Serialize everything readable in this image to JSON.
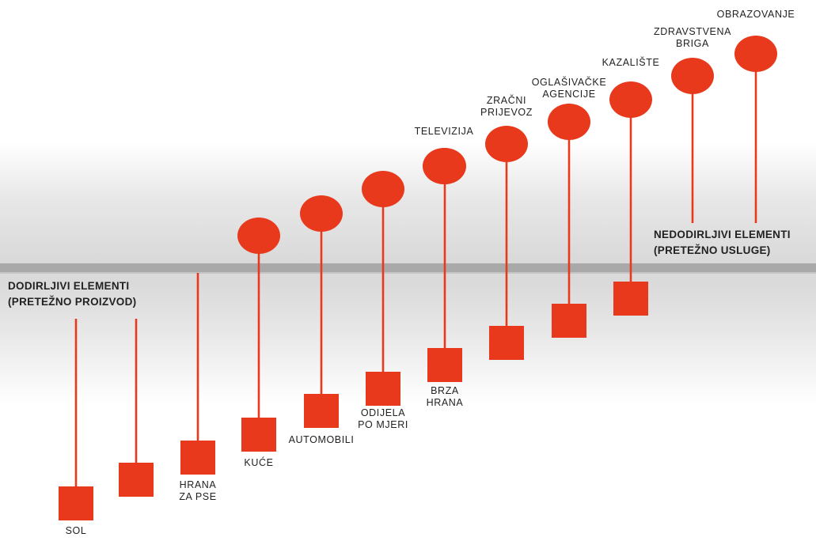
{
  "colors": {
    "marker": "#e8391d",
    "stem": "#e8391d",
    "band": "#a9a9a9",
    "text": "#222222"
  },
  "left_heading": {
    "line1": "DODIRLJIVI ELEMENTI",
    "line2": "(PRETEŽNO PROIZVOD)"
  },
  "right_heading": {
    "line1": "NEDODIRLJIVI ELEMENTI",
    "line2": "(PRETEŽNO USLUGE)"
  },
  "items": [
    {
      "label": [
        "SOL"
      ],
      "marker": "square"
    },
    {
      "label": [],
      "marker": "square"
    },
    {
      "label": [
        "HRANA",
        "ZA PSE"
      ],
      "marker": "square"
    },
    {
      "label": [
        "KUĆE"
      ],
      "marker": "square+circle"
    },
    {
      "label": [
        "AUTOMOBILI"
      ],
      "marker": "square+circle"
    },
    {
      "label": [
        "ODIJELA",
        "PO MJERI"
      ],
      "marker": "square+circle"
    },
    {
      "label": [
        "BRZA",
        "HRANA"
      ],
      "marker": "square+circle"
    },
    {
      "label": [
        "ZRAČNI",
        "PRIJEVOZ"
      ],
      "marker": "square+circle"
    },
    {
      "label": [
        "OGLAŠIVAČKE",
        "AGENCIJE"
      ],
      "marker": "square+circle"
    },
    {
      "label": [
        "KAZALIŠTE"
      ],
      "marker": "square+circle"
    },
    {
      "label": [
        "TELEVIZIJA"
      ],
      "marker": "circle"
    },
    {
      "label": [
        "ZDRAVSTVENA",
        "BRIGA"
      ],
      "marker": "circle"
    },
    {
      "label": [
        "OBRAZOVANJE"
      ],
      "marker": "circle"
    }
  ]
}
